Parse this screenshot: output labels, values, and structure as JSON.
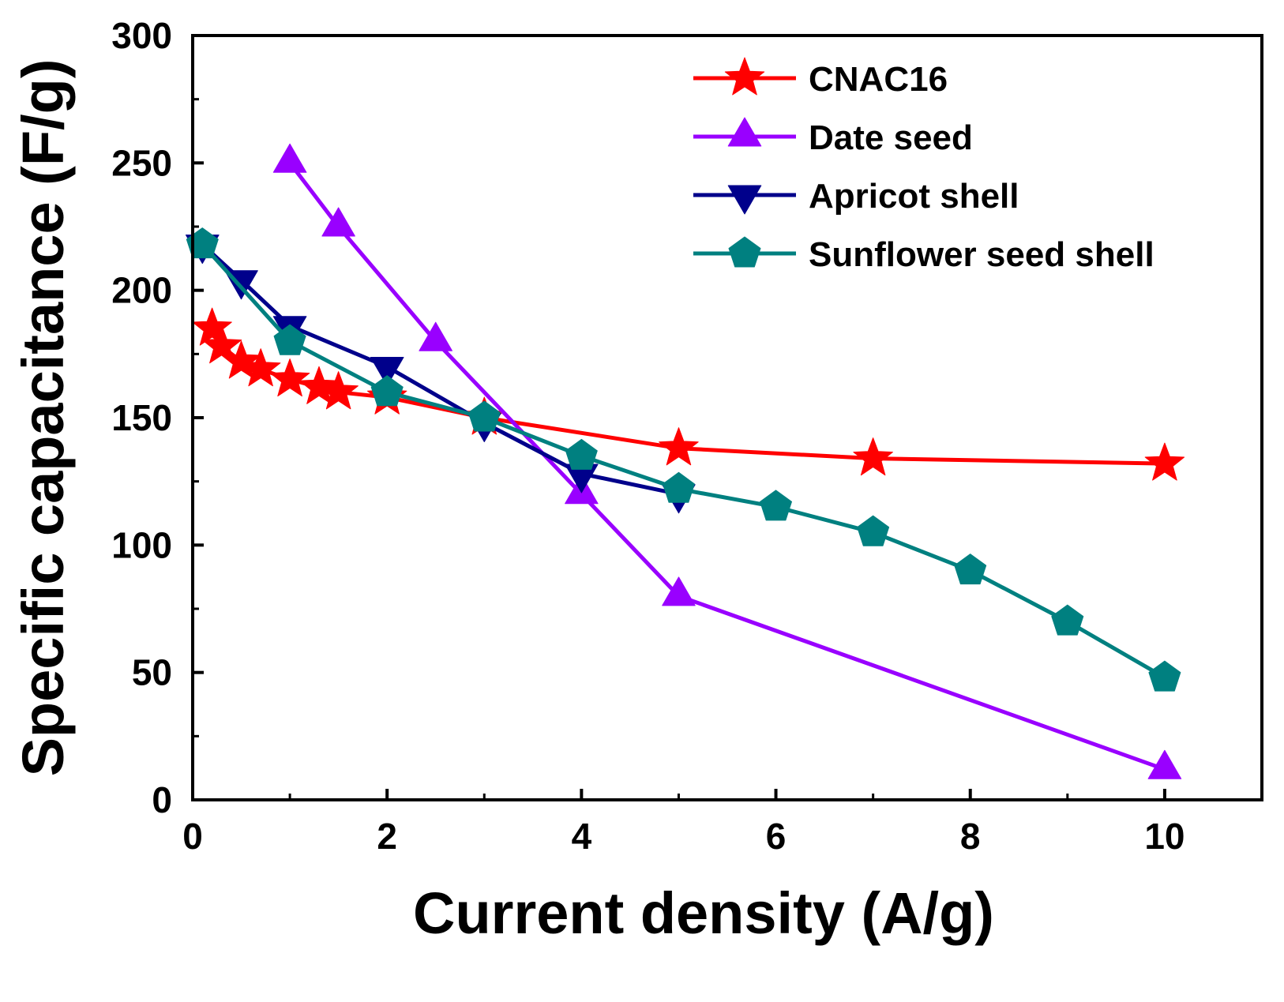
{
  "chart_data": {
    "type": "line",
    "title": "",
    "xlabel": "Current density (A/g)",
    "ylabel": "Specific capacitance (F/g)",
    "xlim": [
      0,
      11
    ],
    "ylim": [
      0,
      300
    ],
    "x_ticks": [
      0,
      2,
      4,
      6,
      8,
      10
    ],
    "y_ticks": [
      0,
      50,
      100,
      150,
      200,
      250,
      300
    ],
    "x_tick_labels": [
      "0",
      "2",
      "4",
      "6",
      "8",
      "10"
    ],
    "y_tick_labels": [
      "0",
      "50",
      "100",
      "150",
      "200",
      "250",
      "300"
    ],
    "grid": false,
    "legend_position": "top-right",
    "series": [
      {
        "name": "CNAC16",
        "color": "#ff0000",
        "marker": "star",
        "x": [
          0.2,
          0.3,
          0.5,
          0.7,
          1.0,
          1.3,
          1.5,
          2.0,
          3.0,
          5.0,
          7.0,
          10.0
        ],
        "y": [
          185,
          178,
          172,
          169,
          165,
          162,
          160,
          158,
          150,
          138,
          134,
          132
        ]
      },
      {
        "name": "Date seed",
        "color": "#9900ff",
        "marker": "triangle-up",
        "x": [
          1.0,
          1.5,
          2.5,
          4.0,
          5.0,
          10.0
        ],
        "y": [
          250,
          225,
          180,
          120,
          80,
          12
        ]
      },
      {
        "name": "Apricot shell",
        "color": "#00008b",
        "marker": "triangle-down",
        "x": [
          0.1,
          0.5,
          1.0,
          2.0,
          3.0,
          4.0,
          5.0
        ],
        "y": [
          218,
          204,
          186,
          170,
          148,
          128,
          120
        ]
      },
      {
        "name": "Sunflower seed shell",
        "color": "#008080",
        "marker": "pentagon",
        "x": [
          0.1,
          1.0,
          2.0,
          3.0,
          4.0,
          5.0,
          6.0,
          7.0,
          8.0,
          9.0,
          10.0
        ],
        "y": [
          218,
          180,
          160,
          150,
          135,
          122,
          115,
          105,
          90,
          70,
          48
        ]
      }
    ]
  }
}
